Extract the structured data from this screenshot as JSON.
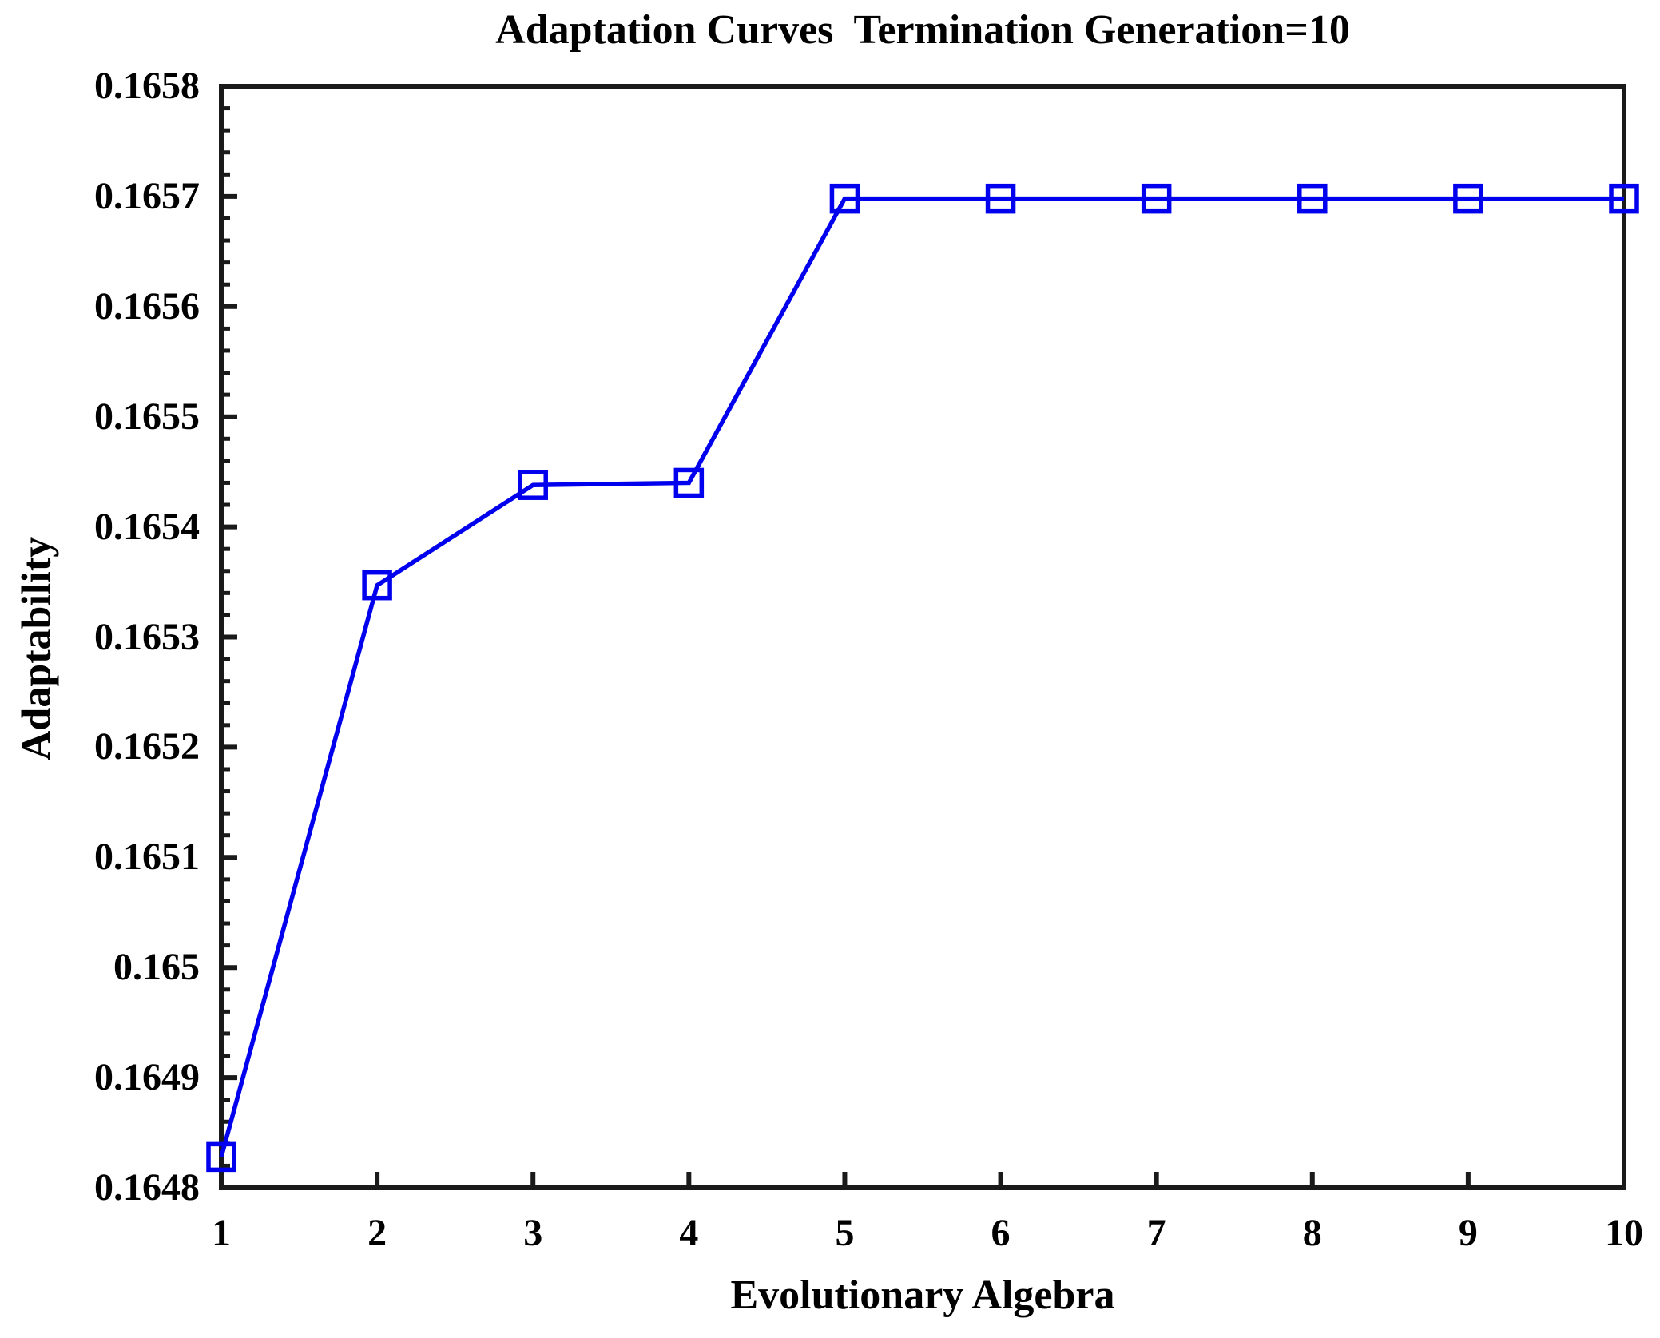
{
  "chart_data": {
    "type": "line",
    "title": "Adaptation Curves  Termination Generation=10",
    "xlabel": "Evolutionary Algebra",
    "ylabel": "Adaptability",
    "x": [
      1,
      2,
      3,
      4,
      5,
      6,
      7,
      8,
      9,
      10
    ],
    "y": [
      0.164828,
      0.165347,
      0.165438,
      0.16544,
      0.165698,
      0.165698,
      0.165698,
      0.165698,
      0.165698,
      0.165698
    ],
    "xlim": [
      1,
      10
    ],
    "ylim": [
      0.1648,
      0.1658
    ],
    "x_ticks": [
      1,
      2,
      3,
      4,
      5,
      6,
      7,
      8,
      9,
      10
    ],
    "x_tick_labels": [
      "1",
      "2",
      "3",
      "4",
      "5",
      "6",
      "7",
      "8",
      "9",
      "10"
    ],
    "y_ticks": [
      0.1648,
      0.1649,
      0.165,
      0.1651,
      0.1652,
      0.1653,
      0.1654,
      0.1655,
      0.1656,
      0.1657,
      0.1658
    ],
    "y_tick_labels": [
      "0.1648",
      "0.1649",
      "0.165",
      "0.1651",
      "0.1652",
      "0.1653",
      "0.1654",
      "0.1655",
      "0.1656",
      "0.1657",
      "0.1658"
    ],
    "y_minor_ticks_per_interval": 4,
    "grid": false,
    "legend": "none",
    "marker": "open-square",
    "line_color": "#0000EE",
    "axis_color": "#1a1a1a",
    "background_color": "#ffffff"
  }
}
